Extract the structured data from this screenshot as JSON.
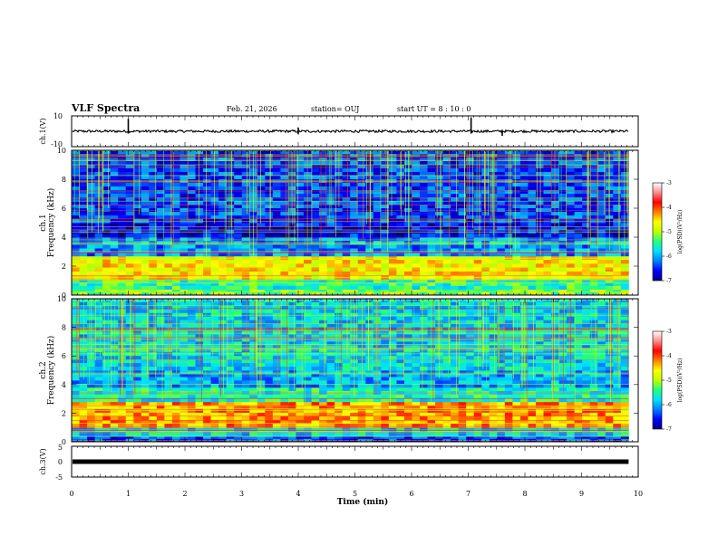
{
  "header": {
    "title": "VLF Spectra",
    "date": "Feb. 21, 2026",
    "station": "station= OUJ",
    "start": "start  UT =   8  : 10 : 0"
  },
  "colorbar": {
    "label": "log(PSD)(V²/Hz)",
    "ticks": [
      "-3",
      "-4",
      "-5",
      "-6",
      "-7"
    ],
    "stops": [
      "#000080",
      "#0000ff",
      "#0080ff",
      "#00e0ff",
      "#20ff80",
      "#c0ff00",
      "#ffff00",
      "#ff8000",
      "#ff0000",
      "#ff8c8c",
      "#ffffff"
    ]
  },
  "chart_data": [
    {
      "type": "line",
      "name": "waveform-ch1",
      "ylabel": "ch.1(V)",
      "ylim": [
        -10,
        10
      ],
      "yticks": [
        "10",
        "-10"
      ],
      "baseline": 0,
      "spikes": [
        {
          "x": 1.0,
          "low": -1.5,
          "high": 8
        },
        {
          "x": 4.0,
          "low": -2,
          "high": 2.5
        },
        {
          "x": 7.05,
          "low": -1.5,
          "high": 9
        },
        {
          "x": 7.6,
          "low": -3,
          "high": 1
        }
      ]
    },
    {
      "type": "heatmap",
      "name": "spectrogram-ch1",
      "ylabel_1": "ch.1",
      "ylabel_2": "Frequency (kHz)",
      "ylim": [
        0,
        10
      ],
      "yticks": [
        "0",
        "2",
        "4",
        "6",
        "8",
        "10"
      ],
      "bands": [
        {
          "f0": 0.0,
          "f1": 0.4,
          "level": -5.2
        },
        {
          "f0": 0.4,
          "f1": 1.1,
          "level": -5.5
        },
        {
          "f0": 1.1,
          "f1": 2.7,
          "level": -4.6
        },
        {
          "f0": 2.7,
          "f1": 4.0,
          "level": -6.1
        },
        {
          "f0": 4.0,
          "f1": 5.0,
          "level": -6.6
        },
        {
          "f0": 5.0,
          "f1": 10.0,
          "level": -6.4
        }
      ]
    },
    {
      "type": "heatmap",
      "name": "spectrogram-ch2",
      "ylabel_1": "ch.2",
      "ylabel_2": "Frequency (kHz)",
      "ylim": [
        0,
        10
      ],
      "yticks": [
        "0",
        "2",
        "4",
        "6",
        "8",
        "10"
      ],
      "bands": [
        {
          "f0": 0.0,
          "f1": 0.4,
          "level": -6.4
        },
        {
          "f0": 0.4,
          "f1": 1.0,
          "level": -5.8
        },
        {
          "f0": 1.0,
          "f1": 2.8,
          "level": -4.3
        },
        {
          "f0": 2.8,
          "f1": 3.8,
          "level": -5.6
        },
        {
          "f0": 3.8,
          "f1": 5.0,
          "level": -6.0
        },
        {
          "f0": 5.0,
          "f1": 10.0,
          "level": -5.8
        }
      ]
    },
    {
      "type": "line",
      "name": "waveform-ch3",
      "ylabel": "ch.3(V)",
      "ylim": [
        -5,
        5
      ],
      "yticks": [
        "5",
        "0",
        "-5"
      ],
      "baseline": 0
    }
  ],
  "xaxis": {
    "label": "Time (min)",
    "xlim": [
      0,
      10
    ],
    "ticks": [
      "0",
      "1",
      "2",
      "3",
      "4",
      "5",
      "6",
      "7",
      "8",
      "9",
      "10"
    ],
    "data_end": 9.83
  }
}
